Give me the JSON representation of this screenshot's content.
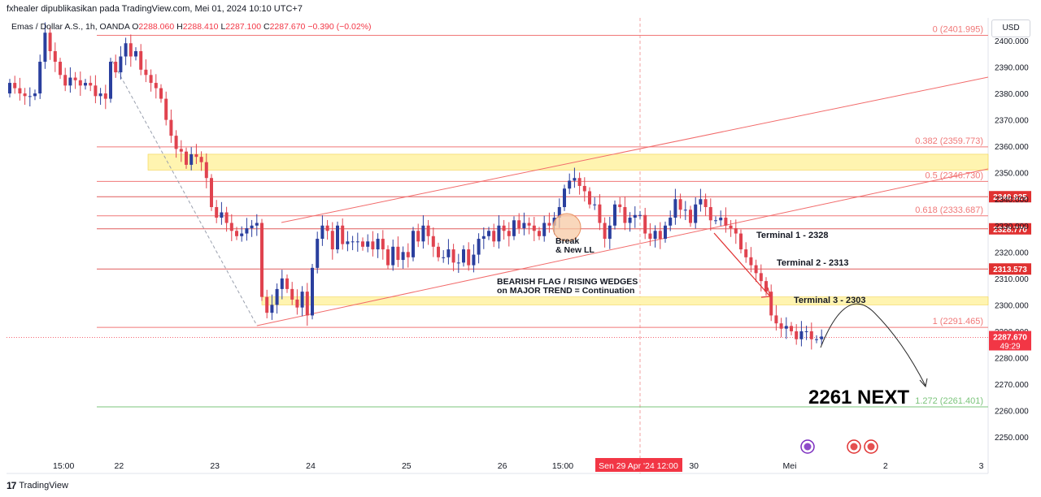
{
  "header": {
    "published_by": "fxhealer dipublikasikan pada TradingView.com, Mei 01, 2024 10:10 UTC+7"
  },
  "legend": {
    "symbol": "Emas / Dollar A.S., 1h, OANDA",
    "o_label": "O",
    "o_value": "2288.060",
    "h_label": "H",
    "h_value": "2288.410",
    "l_label": "L",
    "l_value": "2287.100",
    "c_label": "C",
    "c_value": "2287.670",
    "change": "−0.390 (−0.02%)"
  },
  "currency_button": "USD",
  "footer": {
    "brand": "TradingView"
  },
  "colors": {
    "bull": "#2a3f9e",
    "bear": "#e0434f",
    "fib": "#f07878",
    "zone": "#fff4b0",
    "wedge": "#f26b6b",
    "ext": "#7bc47b",
    "price_badge": "#f23645",
    "crosshair": "#f0a0a0"
  },
  "chart_data": {
    "type": "candlestick",
    "symbol": "XAUUSD",
    "timeframe": "1h",
    "ylim": [
      2243,
      2405
    ],
    "y_ticks": [
      2250,
      2260,
      2270,
      2280,
      2290,
      2300,
      2310,
      2320,
      2330,
      2340,
      2350,
      2360,
      2370,
      2380,
      2390,
      2400
    ],
    "y_tick_labels": [
      "2250.000",
      "2260.000",
      "2270.000",
      "2280.000",
      "2290.000",
      "2300.000",
      "2310.000",
      "2320.000",
      "2330.000",
      "2340.000",
      "2350.000",
      "2360.000",
      "2370.000",
      "2380.000",
      "2390.000",
      "2400.000"
    ],
    "x_ticks": [
      {
        "label": "15:00",
        "idx": 11
      },
      {
        "label": "22",
        "idx": 22
      },
      {
        "label": "23",
        "idx": 41
      },
      {
        "label": "24",
        "idx": 60
      },
      {
        "label": "25",
        "idx": 79
      },
      {
        "label": "26",
        "idx": 98
      },
      {
        "label": "15:00",
        "idx": 110
      },
      {
        "label": "30",
        "idx": 136
      },
      {
        "label": "Mei",
        "idx": 155
      },
      {
        "label": "2",
        "idx": 174
      },
      {
        "label": "3",
        "idx": 193
      }
    ],
    "x_crosshair_label": {
      "label": "Sen 29 Apr '24   12:00",
      "idx": 125
    },
    "candles_close": [
      2384,
      2382,
      2380,
      2379,
      2379,
      2380,
      2392,
      2403,
      2396,
      2392,
      2387,
      2383,
      2386,
      2385,
      2383,
      2384,
      2383,
      2379,
      2380,
      2378,
      2392,
      2388,
      2394,
      2399,
      2394,
      2396,
      2389,
      2387,
      2384,
      2382,
      2378,
      2370,
      2364,
      2359,
      2358,
      2353,
      2357,
      2356,
      2354,
      2348,
      2337,
      2333,
      2335,
      2331,
      2328,
      2326,
      2327,
      2329,
      2330,
      2331,
      2303,
      2297,
      2300,
      2306,
      2310,
      2306,
      2302,
      2299,
      2305,
      2296,
      2314,
      2325,
      2330,
      2328,
      2321,
      2330,
      2323,
      2324,
      2324,
      2324,
      2322,
      2324,
      2321,
      2325,
      2321,
      2315,
      2322,
      2317,
      2320,
      2318,
      2328,
      2324,
      2330,
      2326,
      2322,
      2318,
      2318,
      2321,
      2316,
      2316,
      2321,
      2315,
      2319,
      2325,
      2326,
      2328,
      2324,
      2330,
      2328,
      2326,
      2332,
      2329,
      2331,
      2330,
      2328,
      2326,
      2331,
      2330,
      2333,
      2337,
      2344,
      2347,
      2348,
      2345,
      2343,
      2338,
      2338,
      2331,
      2325,
      2330,
      2338,
      2337,
      2331,
      2333,
      2334,
      2334,
      2327,
      2325,
      2328,
      2325,
      2330,
      2333,
      2340,
      2336,
      2336,
      2331,
      2338,
      2340,
      2337,
      2332,
      2332,
      2333,
      2330,
      2329,
      2327,
      2321,
      2318,
      2315,
      2312,
      2309,
      2305,
      2296,
      2293,
      2291,
      2292,
      2290,
      2287,
      2290,
      2290,
      2287,
      2287,
      2288
    ],
    "fib_levels": [
      {
        "ratio": "0",
        "value": 2401.995,
        "label": "0 (2401.995)"
      },
      {
        "ratio": "0.382",
        "value": 2359.773,
        "label": "0.382 (2359.773)"
      },
      {
        "ratio": "0.5",
        "value": 2346.73,
        "label": "0.5 (2346.730)"
      },
      {
        "ratio": "0.618",
        "value": 2333.687,
        "label": "0.618 (2333.687)"
      },
      {
        "ratio": "1",
        "value": 2291.465,
        "label": "1 (2291.465)"
      },
      {
        "ratio": "1.272",
        "value": 2261.401,
        "label": "1.272 (2261.401)"
      }
    ],
    "zones": [
      {
        "from": 2351,
        "to": 2357
      },
      {
        "from": 2300,
        "to": 2303
      }
    ],
    "horizontal_levels": [
      {
        "value": 2340.925,
        "label": "2340.925"
      },
      {
        "value": 2328.77,
        "label": "2328.770"
      },
      {
        "value": 2313.573,
        "label": "2313.573"
      }
    ],
    "current_price": {
      "value": 2287.67,
      "label": "2287.670",
      "countdown": "49:29"
    },
    "annotations": {
      "terminal_1": "Terminal 1 - 2328",
      "terminal_2": "Terminal 2 - 2313",
      "terminal_3": "Terminal 3 - 2303",
      "pattern_line1": "BEARISH FLAG / RISING WEDGES",
      "pattern_line2": "on MAJOR TREND = Continuation",
      "break_line1": "Break",
      "break_line2": "& New LL",
      "target": "2261 NEXT"
    }
  }
}
